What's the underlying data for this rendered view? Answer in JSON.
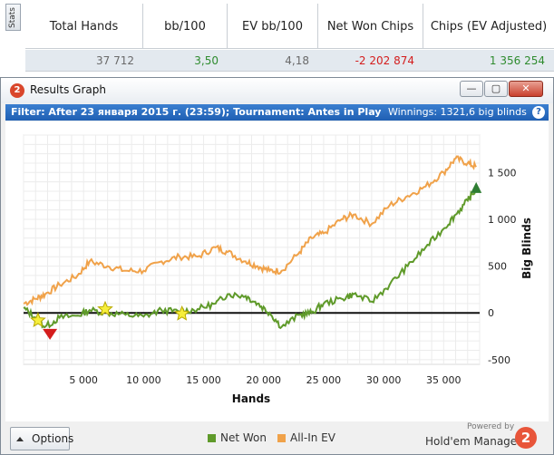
{
  "stats": {
    "tab_label": "Stats",
    "columns": [
      "Total Hands",
      "bb/100",
      "EV bb/100",
      "Net Won Chips",
      "Chips (EV Adjusted)"
    ],
    "row": [
      "37 712",
      "3,50",
      "4,18",
      "-2 202 874",
      "1 356 254"
    ]
  },
  "window": {
    "title": "Results Graph",
    "app_icon": "2",
    "buttons": {
      "minimize": "—",
      "maximize": "▢",
      "close": "✕"
    },
    "filter_text": "Filter: After 23 января 2015 г. (23:59); Tournament: Antes in Play",
    "winnings_text": "Winnings: 1321,6 big blinds",
    "help": "?"
  },
  "colors": {
    "net_won": "#5f9a2a",
    "all_in_ev": "#f0a24a",
    "filter_bg": "#1f5fb3",
    "marker_red": "#d41d1d",
    "marker_green": "#2e7d32",
    "star": "#f6ee3c"
  },
  "chart_data": {
    "type": "line",
    "xlabel": "Hands",
    "ylabel": "Big Blinds",
    "xlim": [
      0,
      38000
    ],
    "ylim": [
      -550,
      1900
    ],
    "x_ticks": [
      5000,
      10000,
      15000,
      20000,
      25000,
      30000,
      35000
    ],
    "x_tick_labels": [
      "5 000",
      "10 000",
      "15 000",
      "20 000",
      "25 000",
      "30 000",
      "35 000"
    ],
    "y_ticks": [
      -500,
      0,
      500,
      1000,
      1500
    ],
    "y_tick_labels": [
      "-500",
      "0",
      "500",
      "1 000",
      "1 500"
    ],
    "y_axis_side": "right",
    "grid": true,
    "legend_position": "bottom",
    "x": [
      0,
      1000,
      1800,
      3000,
      4500,
      5500,
      7000,
      8500,
      10000,
      11500,
      13000,
      14500,
      16000,
      17000,
      18500,
      19500,
      20500,
      21500,
      23000,
      24000,
      25000,
      26500,
      27500,
      29000,
      30500,
      32000,
      33500,
      35000,
      36000,
      37000,
      37712
    ],
    "series": [
      {
        "name": "Net Won",
        "values": [
          50,
          -50,
          -150,
          -50,
          -30,
          30,
          0,
          -20,
          -40,
          30,
          10,
          40,
          100,
          200,
          180,
          100,
          0,
          -150,
          -20,
          0,
          100,
          150,
          200,
          120,
          300,
          500,
          700,
          900,
          1050,
          1200,
          1320
        ]
      },
      {
        "name": "All-In EV",
        "values": [
          100,
          150,
          200,
          300,
          400,
          550,
          500,
          450,
          450,
          550,
          600,
          600,
          700,
          650,
          550,
          500,
          450,
          450,
          650,
          800,
          850,
          1000,
          1050,
          950,
          1150,
          1250,
          1350,
          1500,
          1650,
          1600,
          1560
        ]
      }
    ],
    "markers": [
      {
        "type": "star",
        "x": 1200,
        "y": -80
      },
      {
        "type": "star",
        "x": 6800,
        "y": 40
      },
      {
        "type": "star",
        "x": 13200,
        "y": -10
      },
      {
        "type": "down-triangle",
        "x": 2200,
        "y": -220
      },
      {
        "type": "up-triangle",
        "x": 37712,
        "y": 1320
      }
    ]
  },
  "footer": {
    "options_label": "Options",
    "legend": [
      "Net Won",
      "All-In EV"
    ],
    "brand_powered": "Powered by",
    "brand_name": "Hold'em Manager",
    "brand_logo": "2"
  }
}
